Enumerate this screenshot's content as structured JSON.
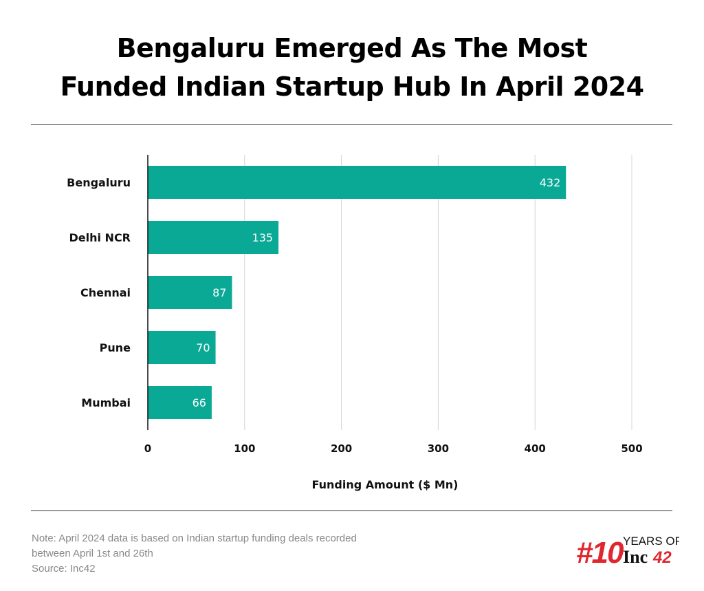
{
  "chart_data": {
    "type": "bar",
    "orientation": "horizontal",
    "title": "Bengaluru Emerged As The Most Funded Indian Startup Hub In April 2024",
    "categories": [
      "Bengaluru",
      "Delhi NCR",
      "Chennai",
      "Pune",
      "Mumbai"
    ],
    "values": [
      432,
      135,
      87,
      70,
      66
    ],
    "xlabel": "Funding Amount ($ Mn)",
    "ylabel": "",
    "xlim": [
      0,
      500
    ],
    "xticks": [
      0,
      100,
      200,
      300,
      400,
      500
    ],
    "grid": true,
    "bar_color": "#0aa995",
    "data_labels": true
  },
  "footer": {
    "note_line1": "Note: April 2024 data is based on Indian startup funding deals recorded",
    "note_line2": "between April 1st and 26th",
    "source": "Source: Inc42"
  },
  "logo": {
    "text": "#10 YEARS OF Inc42",
    "color": "#e0262e"
  }
}
